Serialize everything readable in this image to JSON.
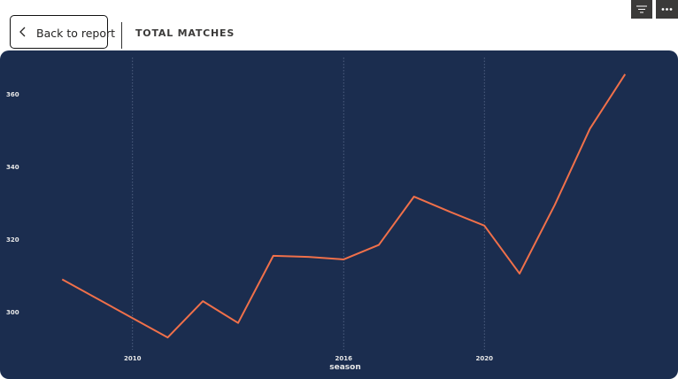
{
  "header": {
    "back_label": "Back to report",
    "title": "TOTAL MATCHES"
  },
  "toolbar": {
    "filter_icon": "filter-icon",
    "more_icon": "more-options-icon"
  },
  "colors": {
    "card_background": "#1b2d4f",
    "line": "#f0704a",
    "gridline": "#5a6b8c"
  },
  "chart_data": {
    "type": "line",
    "xlabel": "season",
    "ylabel": "",
    "x_ticks": [
      "2010",
      "2016",
      "2020"
    ],
    "y_ticks": [
      "360",
      "340",
      "320",
      "300"
    ],
    "xlim": [
      2007,
      2024
    ],
    "ylim": [
      290,
      374
    ],
    "grid": "vertical dotted",
    "series": [
      {
        "x": [
          2008,
          2011,
          2012,
          2013,
          2014,
          2015,
          2016,
          2017,
          2018,
          2019,
          2020,
          2021,
          2022,
          2023,
          2024
        ],
        "y": [
          309,
          293,
          303,
          297,
          315.5,
          315.2,
          314.5,
          318.5,
          331.8,
          327.7,
          323.8,
          310.6,
          329.5,
          350.5,
          365.5
        ]
      }
    ]
  }
}
